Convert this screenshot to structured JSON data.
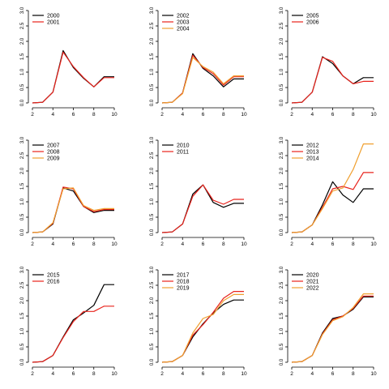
{
  "colors": {
    "black": "#000000",
    "red": "#e8231c",
    "orange": "#f0a030",
    "axis": "#000000"
  },
  "chart_data": [
    {
      "type": "line",
      "title": "",
      "xlabel": "",
      "ylabel": "",
      "x": [
        2,
        3,
        4,
        5,
        6,
        7,
        8,
        9,
        10
      ],
      "xticks": [
        "2",
        "4",
        "6",
        "8",
        "10"
      ],
      "yticks": [
        "0.0",
        "0.5",
        "1.0",
        "1.5",
        "2.0",
        "2.5",
        "3.0"
      ],
      "xlim": [
        2,
        10
      ],
      "ylim": [
        0,
        3
      ],
      "legend_position": "top-left",
      "series": [
        {
          "name": "2000",
          "color": "black",
          "values": [
            0.0,
            0.02,
            0.35,
            1.7,
            1.15,
            0.8,
            0.52,
            0.85,
            0.85
          ]
        },
        {
          "name": "2001",
          "color": "red",
          "values": [
            0.0,
            0.02,
            0.35,
            1.65,
            1.18,
            0.82,
            0.52,
            0.82,
            0.82
          ]
        }
      ]
    },
    {
      "type": "line",
      "title": "",
      "xlabel": "",
      "ylabel": "",
      "x": [
        2,
        3,
        4,
        5,
        6,
        7,
        8,
        9,
        10
      ],
      "xticks": [
        "2",
        "4",
        "6",
        "8",
        "10"
      ],
      "yticks": [
        "0.0",
        "0.5",
        "1.0",
        "1.5",
        "2.0",
        "2.5",
        "3.0"
      ],
      "xlim": [
        2,
        10
      ],
      "ylim": [
        0,
        3
      ],
      "legend_position": "top-left",
      "series": [
        {
          "name": "2002",
          "color": "black",
          "values": [
            0.0,
            0.02,
            0.32,
            1.6,
            1.12,
            0.88,
            0.52,
            0.78,
            0.78
          ]
        },
        {
          "name": "2003",
          "color": "red",
          "values": [
            0.0,
            0.02,
            0.32,
            1.55,
            1.15,
            0.95,
            0.58,
            0.85,
            0.85
          ]
        },
        {
          "name": "2004",
          "color": "orange",
          "values": [
            0.0,
            0.02,
            0.3,
            1.48,
            1.18,
            1.0,
            0.62,
            0.88,
            0.88
          ]
        }
      ]
    },
    {
      "type": "line",
      "title": "",
      "xlabel": "",
      "ylabel": "",
      "x": [
        2,
        3,
        4,
        5,
        6,
        7,
        8,
        9,
        10
      ],
      "xticks": [
        "2",
        "4",
        "6",
        "8",
        "10"
      ],
      "yticks": [
        "0.0",
        "0.5",
        "1.0",
        "1.5",
        "2.0",
        "2.5",
        "3.0"
      ],
      "xlim": [
        2,
        10
      ],
      "ylim": [
        0,
        3
      ],
      "legend_position": "top-left",
      "series": [
        {
          "name": "2005",
          "color": "black",
          "values": [
            0.0,
            0.02,
            0.35,
            1.5,
            1.28,
            0.88,
            0.62,
            0.82,
            0.82
          ]
        },
        {
          "name": "2006",
          "color": "red",
          "values": [
            0.0,
            0.02,
            0.35,
            1.48,
            1.35,
            0.88,
            0.62,
            0.7,
            0.7
          ]
        }
      ]
    },
    {
      "type": "line",
      "title": "",
      "xlabel": "",
      "ylabel": "",
      "x": [
        2,
        3,
        4,
        5,
        6,
        7,
        8,
        9,
        10
      ],
      "xticks": [
        "2",
        "4",
        "6",
        "8",
        "10"
      ],
      "yticks": [
        "0.0",
        "0.5",
        "1.0",
        "1.5",
        "2.0",
        "2.5",
        "3.0"
      ],
      "xlim": [
        2,
        10
      ],
      "ylim": [
        0,
        3
      ],
      "legend_position": "top-left",
      "series": [
        {
          "name": "2007",
          "color": "black",
          "values": [
            0.0,
            0.02,
            0.28,
            1.45,
            1.35,
            0.85,
            0.65,
            0.72,
            0.72
          ]
        },
        {
          "name": "2008",
          "color": "red",
          "values": [
            0.0,
            0.02,
            0.3,
            1.48,
            1.42,
            0.85,
            0.68,
            0.75,
            0.75
          ]
        },
        {
          "name": "2009",
          "color": "orange",
          "values": [
            0.0,
            0.02,
            0.32,
            1.42,
            1.45,
            0.88,
            0.72,
            0.78,
            0.78
          ]
        }
      ]
    },
    {
      "type": "line",
      "title": "",
      "xlabel": "",
      "ylabel": "",
      "x": [
        2,
        3,
        4,
        5,
        6,
        7,
        8,
        9,
        10
      ],
      "xticks": [
        "2",
        "4",
        "6",
        "8",
        "10"
      ],
      "yticks": [
        "0.0",
        "0.5",
        "1.0",
        "1.5",
        "2.0",
        "2.5",
        "3.0"
      ],
      "xlim": [
        2,
        10
      ],
      "ylim": [
        0,
        3
      ],
      "legend_position": "top-left",
      "series": [
        {
          "name": "2010",
          "color": "black",
          "values": [
            0.0,
            0.02,
            0.28,
            1.25,
            1.55,
            0.98,
            0.82,
            0.95,
            0.95
          ]
        },
        {
          "name": "2011",
          "color": "red",
          "values": [
            0.0,
            0.02,
            0.28,
            1.18,
            1.55,
            1.05,
            0.92,
            1.08,
            1.08
          ]
        }
      ]
    },
    {
      "type": "line",
      "title": "",
      "xlabel": "",
      "ylabel": "",
      "x": [
        2,
        3,
        4,
        5,
        6,
        7,
        8,
        9,
        10
      ],
      "xticks": [
        "2",
        "4",
        "6",
        "8",
        "10"
      ],
      "yticks": [
        "0.0",
        "0.5",
        "1.0",
        "1.5",
        "2.0",
        "2.5",
        "3.0"
      ],
      "xlim": [
        2,
        10
      ],
      "ylim": [
        0,
        3
      ],
      "legend_position": "top-left",
      "series": [
        {
          "name": "2012",
          "color": "black",
          "values": [
            0.0,
            0.02,
            0.25,
            0.9,
            1.65,
            1.22,
            0.98,
            1.42,
            1.42
          ]
        },
        {
          "name": "2013",
          "color": "red",
          "values": [
            0.0,
            0.02,
            0.25,
            0.82,
            1.42,
            1.5,
            1.4,
            1.95,
            1.95
          ]
        },
        {
          "name": "2014",
          "color": "orange",
          "values": [
            0.0,
            0.02,
            0.25,
            0.78,
            1.35,
            1.45,
            2.05,
            2.88,
            2.88
          ]
        }
      ]
    },
    {
      "type": "line",
      "title": "",
      "xlabel": "",
      "ylabel": "",
      "x": [
        2,
        3,
        4,
        5,
        6,
        7,
        8,
        9,
        10
      ],
      "xticks": [
        "2",
        "4",
        "6",
        "8",
        "10"
      ],
      "yticks": [
        "0.0",
        "0.5",
        "1.0",
        "1.5",
        "2.0",
        "2.5",
        "3.0"
      ],
      "xlim": [
        2,
        10
      ],
      "ylim": [
        0,
        3
      ],
      "legend_position": "top-left",
      "series": [
        {
          "name": "2015",
          "color": "black",
          "values": [
            0.0,
            0.02,
            0.22,
            0.82,
            1.38,
            1.6,
            1.85,
            2.52,
            2.52
          ]
        },
        {
          "name": "2016",
          "color": "red",
          "values": [
            0.0,
            0.02,
            0.22,
            0.8,
            1.32,
            1.65,
            1.65,
            1.82,
            1.82
          ]
        }
      ]
    },
    {
      "type": "line",
      "title": "",
      "xlabel": "",
      "ylabel": "",
      "x": [
        2,
        3,
        4,
        5,
        6,
        7,
        8,
        9,
        10
      ],
      "xticks": [
        "2",
        "4",
        "6",
        "8",
        "10"
      ],
      "yticks": [
        "0.0",
        "0.5",
        "1.0",
        "1.5",
        "2.0",
        "2.5",
        "3.0"
      ],
      "xlim": [
        2,
        10
      ],
      "ylim": [
        0,
        3
      ],
      "legend_position": "top-left",
      "series": [
        {
          "name": "2017",
          "color": "black",
          "values": [
            0.0,
            0.02,
            0.22,
            0.82,
            1.25,
            1.6,
            1.88,
            2.02,
            2.02
          ]
        },
        {
          "name": "2018",
          "color": "red",
          "values": [
            0.0,
            0.02,
            0.22,
            0.88,
            1.22,
            1.62,
            2.08,
            2.3,
            2.3
          ]
        },
        {
          "name": "2019",
          "color": "orange",
          "values": [
            0.0,
            0.02,
            0.22,
            0.95,
            1.42,
            1.55,
            2.0,
            2.2,
            2.2
          ]
        }
      ]
    },
    {
      "type": "line",
      "title": "",
      "xlabel": "",
      "ylabel": "",
      "x": [
        2,
        3,
        4,
        5,
        6,
        7,
        8,
        9,
        10
      ],
      "xticks": [
        "2",
        "4",
        "6",
        "8",
        "10"
      ],
      "yticks": [
        "0.0",
        "0.5",
        "1.0",
        "1.5",
        "2.0",
        "2.5",
        "3.0"
      ],
      "xlim": [
        2,
        10
      ],
      "ylim": [
        0,
        3
      ],
      "legend_position": "top-left",
      "series": [
        {
          "name": "2020",
          "color": "black",
          "values": [
            0.0,
            0.02,
            0.22,
            0.95,
            1.42,
            1.5,
            1.72,
            2.12,
            2.12
          ]
        },
        {
          "name": "2021",
          "color": "red",
          "values": [
            0.0,
            0.02,
            0.22,
            0.92,
            1.38,
            1.5,
            1.75,
            2.15,
            2.15
          ]
        },
        {
          "name": "2022",
          "color": "orange",
          "values": [
            0.0,
            0.02,
            0.22,
            0.9,
            1.35,
            1.48,
            1.78,
            2.22,
            2.22
          ]
        }
      ]
    }
  ]
}
